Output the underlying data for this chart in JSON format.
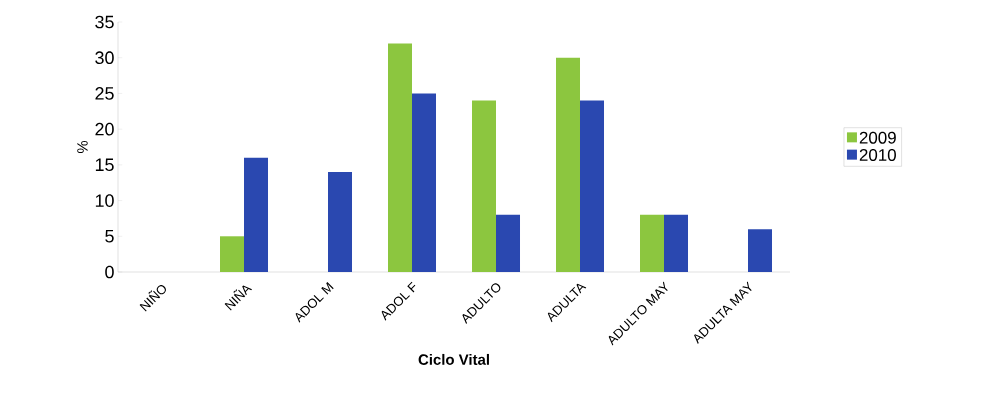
{
  "chart_data": {
    "type": "bar",
    "xlabel": "Ciclo Vital",
    "ylabel": "%",
    "categories": [
      "NIÑO",
      "NIÑA",
      "ADOL M",
      "ADOL F",
      "ADULTO",
      "ADULTA",
      "ADULTO MAY",
      "ADULTA MAY"
    ],
    "series": [
      {
        "name": "2009",
        "color": "#8cc63f",
        "values": [
          null,
          5,
          null,
          32,
          24,
          30,
          8,
          null
        ]
      },
      {
        "name": "2010",
        "color": "#2a48b0",
        "values": [
          null,
          16,
          14,
          25,
          8,
          24,
          8,
          6
        ]
      }
    ],
    "ylim": [
      0,
      35
    ],
    "yticks": [
      0,
      5,
      10,
      15,
      20,
      25,
      30,
      35
    ],
    "legend": "right"
  }
}
